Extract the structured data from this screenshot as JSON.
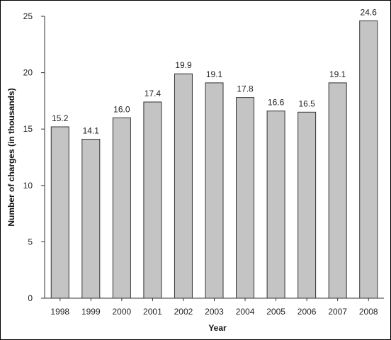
{
  "chart_data": {
    "type": "bar",
    "title": "",
    "xlabel": "Year",
    "ylabel": "Number of charges (in thousands)",
    "categories": [
      "1998",
      "1999",
      "2000",
      "2001",
      "2002",
      "2003",
      "2004",
      "2005",
      "2006",
      "2007",
      "2008"
    ],
    "values": [
      15.2,
      14.1,
      16.0,
      17.4,
      19.9,
      19.1,
      17.8,
      16.6,
      16.5,
      19.1,
      24.6
    ],
    "value_labels": [
      "15.2",
      "14.1",
      "16.0",
      "17.4",
      "19.9",
      "19.1",
      "17.8",
      "16.6",
      "16.5",
      "19.1",
      "24.6"
    ],
    "ylim": [
      0,
      25
    ],
    "yticks": [
      0,
      5,
      10,
      15,
      20,
      25
    ],
    "ytick_labels": [
      "0",
      "5",
      "10",
      "15",
      "20",
      "25"
    ],
    "grid": false,
    "legend": "none",
    "colors": {
      "bar_fill": "#c4c4c4",
      "bar_stroke": "#333333",
      "axis": "#333333"
    }
  }
}
